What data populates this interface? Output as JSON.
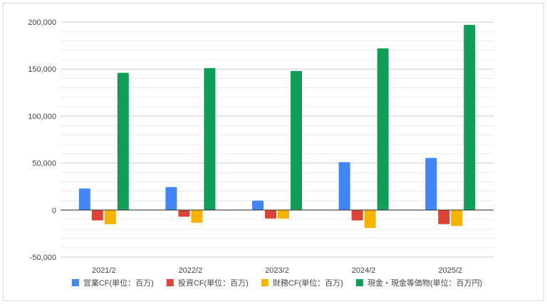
{
  "chart_data": {
    "type": "bar",
    "categories": [
      "2021/2",
      "2022/2",
      "2023/2",
      "2024/2",
      "2025/2"
    ],
    "series": [
      {
        "name": "営業CF(単位：百万)",
        "color": "#4285F4",
        "values": [
          23000,
          24500,
          10000,
          51000,
          55500
        ]
      },
      {
        "name": "投資CF(単位：百万)",
        "color": "#DB4437",
        "values": [
          -11000,
          -7000,
          -9000,
          -11000,
          -15000
        ]
      },
      {
        "name": "財務CF(単位：百万)",
        "color": "#F4B400",
        "values": [
          -15000,
          -13500,
          -9000,
          -19000,
          -17000
        ]
      },
      {
        "name": "現金・現金等価物(単位：百万円)",
        "color": "#0F9D58",
        "values": [
          146000,
          151000,
          148000,
          172000,
          197000
        ]
      }
    ],
    "y_ticks": [
      "-50,000",
      "0",
      "50,000",
      "100,000",
      "150,000",
      "200,000"
    ],
    "ylim": [
      -50000,
      200000
    ],
    "grid": true,
    "legend_position": "bottom"
  }
}
